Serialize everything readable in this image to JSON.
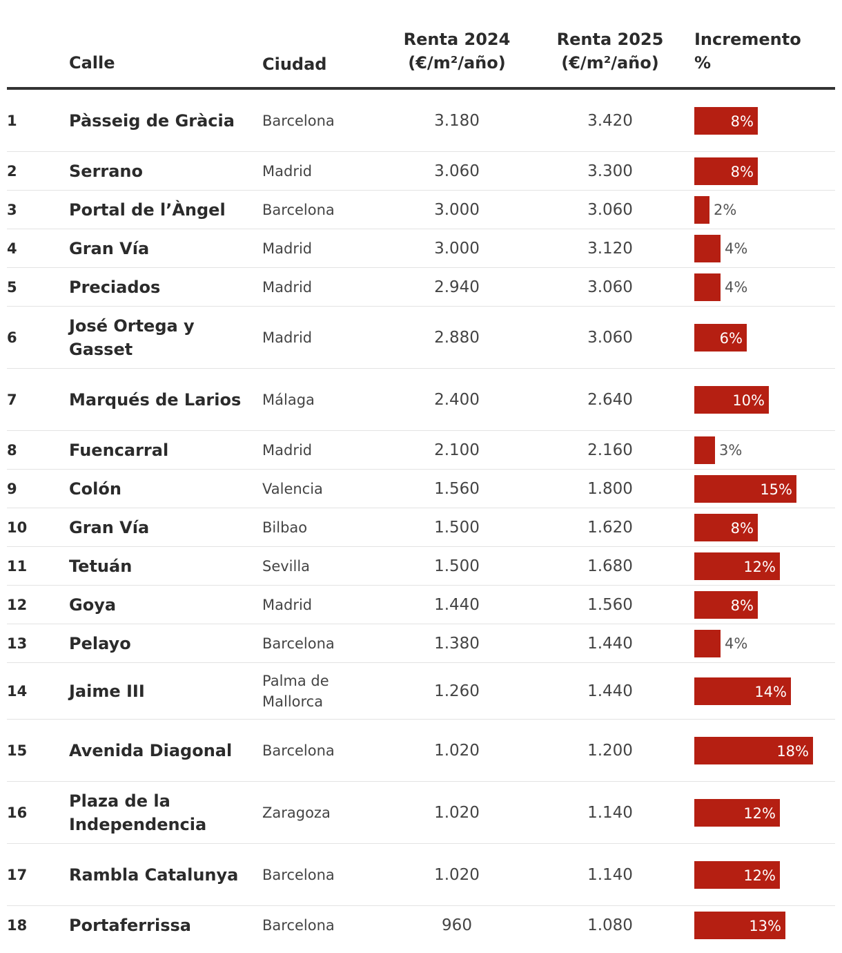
{
  "chart_data": {
    "type": "table",
    "columns": {
      "rank": "",
      "street": "Calle",
      "city": "Ciudad",
      "rent_2024": "Renta 2024 (€/m²/año)",
      "rent_2025": "Renta 2025 (€/m²/año)",
      "increase": "Incremento %"
    },
    "header_lines": {
      "rent_2024": [
        "Renta 2024",
        "(€/m²/año)"
      ],
      "rent_2025": [
        "Renta 2025",
        "(€/m²/año)"
      ],
      "increase": [
        "Incremento",
        "%"
      ]
    },
    "bar_color": "#b51f12",
    "rows": [
      {
        "rank": "1",
        "street": "Pàsseig de Gràcia",
        "city": "Barcelona",
        "rent_2024": "3.180",
        "rent_2025": "3.420",
        "increase": 8,
        "increase_label": "8%"
      },
      {
        "rank": "2",
        "street": "Serrano",
        "city": "Madrid",
        "rent_2024": "3.060",
        "rent_2025": "3.300",
        "increase": 8,
        "increase_label": "8%"
      },
      {
        "rank": "3",
        "street": "Portal de l’Àngel",
        "city": "Barcelona",
        "rent_2024": "3.000",
        "rent_2025": "3.060",
        "increase": 2,
        "increase_label": "2%"
      },
      {
        "rank": "4",
        "street": "Gran Vía",
        "city": "Madrid",
        "rent_2024": "3.000",
        "rent_2025": "3.120",
        "increase": 4,
        "increase_label": "4%"
      },
      {
        "rank": "5",
        "street": "Preciados",
        "city": "Madrid",
        "rent_2024": "2.940",
        "rent_2025": "3.060",
        "increase": 4,
        "increase_label": "4%"
      },
      {
        "rank": "6",
        "street": "José Ortega y Gasset",
        "city": "Madrid",
        "rent_2024": "2.880",
        "rent_2025": "3.060",
        "increase": 6,
        "increase_label": "6%"
      },
      {
        "rank": "7",
        "street": "Marqués de Larios",
        "city": "Málaga",
        "rent_2024": "2.400",
        "rent_2025": "2.640",
        "increase": 10,
        "increase_label": "10%"
      },
      {
        "rank": "8",
        "street": "Fuencarral",
        "city": "Madrid",
        "rent_2024": "2.100",
        "rent_2025": "2.160",
        "increase": 3,
        "increase_label": "3%"
      },
      {
        "rank": "9",
        "street": "Colón",
        "city": "Valencia",
        "rent_2024": "1.560",
        "rent_2025": "1.800",
        "increase": 15,
        "increase_label": "15%"
      },
      {
        "rank": "10",
        "street": "Gran Vía",
        "city": "Bilbao",
        "rent_2024": "1.500",
        "rent_2025": "1.620",
        "increase": 8,
        "increase_label": "8%"
      },
      {
        "rank": "11",
        "street": "Tetuán",
        "city": "Sevilla",
        "rent_2024": "1.500",
        "rent_2025": "1.680",
        "increase": 12,
        "increase_label": "12%"
      },
      {
        "rank": "12",
        "street": "Goya",
        "city": "Madrid",
        "rent_2024": "1.440",
        "rent_2025": "1.560",
        "increase": 8,
        "increase_label": "8%"
      },
      {
        "rank": "13",
        "street": "Pelayo",
        "city": "Barcelona",
        "rent_2024": "1.380",
        "rent_2025": "1.440",
        "increase": 4,
        "increase_label": "4%"
      },
      {
        "rank": "14",
        "street": "Jaime III",
        "city": "Palma de Mallorca",
        "rent_2024": "1.260",
        "rent_2025": "1.440",
        "increase": 14,
        "increase_label": "14%"
      },
      {
        "rank": "15",
        "street": "Avenida Diagonal",
        "city": "Barcelona",
        "rent_2024": "1.020",
        "rent_2025": "1.200",
        "increase": 18,
        "increase_label": "18%"
      },
      {
        "rank": "16",
        "street": "Plaza de la Independencia",
        "city": "Zaragoza",
        "rent_2024": "1.020",
        "rent_2025": "1.140",
        "increase": 12,
        "increase_label": "12%"
      },
      {
        "rank": "17",
        "street": "Rambla Catalunya",
        "city": "Barcelona",
        "rent_2024": "1.020",
        "rent_2025": "1.140",
        "increase": 12,
        "increase_label": "12%"
      },
      {
        "rank": "18",
        "street": "Portaferrissa",
        "city": "Barcelona",
        "rent_2024": "960",
        "rent_2025": "1.080",
        "increase": 13,
        "increase_label": "13%"
      }
    ]
  }
}
